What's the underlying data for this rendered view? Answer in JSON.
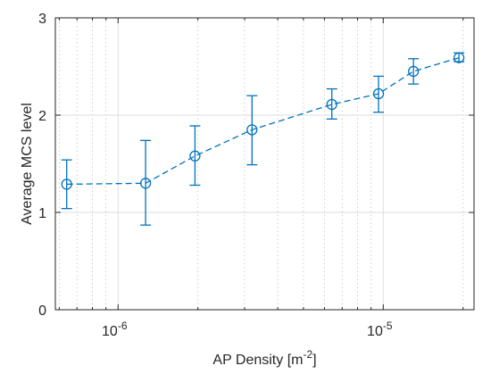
{
  "chart_data": {
    "type": "line",
    "xscale": "log",
    "xlim": [
      5.8e-07,
      2.2e-05
    ],
    "ylim": [
      0,
      3
    ],
    "grid": true,
    "xlabel": "AP Density [m^-2]",
    "xlabel_parts": {
      "base": "AP Density [m",
      "superscript": "-2",
      "suffix": "]"
    },
    "ylabel": "Average MCS level",
    "x_ticks": [
      {
        "value": 1e-06,
        "base": "10",
        "exp": "-6"
      },
      {
        "value": 1e-05,
        "base": "10",
        "exp": "-5"
      }
    ],
    "y_ticks": [
      {
        "value": 0,
        "label": "0"
      },
      {
        "value": 1,
        "label": "1"
      },
      {
        "value": 2,
        "label": "2"
      },
      {
        "value": 3,
        "label": "3"
      }
    ],
    "series": [
      {
        "color": "#0072BD",
        "line_style": "dashed",
        "marker": "circle",
        "points": [
          {
            "x": 6.4e-07,
            "y": 1.29,
            "err_low": 1.04,
            "err_high": 1.54
          },
          {
            "x": 1.27e-06,
            "y": 1.3,
            "err_low": 0.87,
            "err_high": 1.74
          },
          {
            "x": 1.95e-06,
            "y": 1.58,
            "err_low": 1.28,
            "err_high": 1.89
          },
          {
            "x": 3.2e-06,
            "y": 1.85,
            "err_low": 1.49,
            "err_high": 2.2
          },
          {
            "x": 6.4e-06,
            "y": 2.11,
            "err_low": 1.96,
            "err_high": 2.27
          },
          {
            "x": 9.6e-06,
            "y": 2.22,
            "err_low": 2.03,
            "err_high": 2.4
          },
          {
            "x": 1.3e-05,
            "y": 2.45,
            "err_low": 2.32,
            "err_high": 2.58
          },
          {
            "x": 1.93e-05,
            "y": 2.59,
            "err_low": 2.55,
            "err_high": 2.64
          }
        ]
      }
    ]
  }
}
